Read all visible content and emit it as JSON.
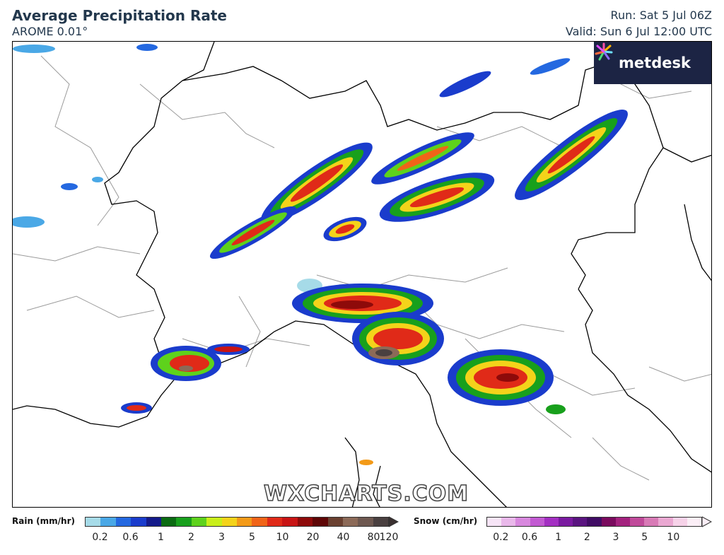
{
  "header": {
    "title": "Average Precipitation Rate",
    "model": "AROME 0.01°",
    "run": "Run: Sat 5 Jul 06Z",
    "valid": "Valid: Sun 6 Jul 12:00 UTC"
  },
  "logo": {
    "text": "metdesk"
  },
  "watermark": "WXCHARTS.COM",
  "legend": {
    "rain": {
      "title": "Rain (mm/hr)",
      "ticks": [
        "0.2",
        "0.6",
        "1",
        "2",
        "3",
        "5",
        "10",
        "20",
        "40",
        "80",
        "120"
      ],
      "colors": [
        "#a6dbe8",
        "#4aa8e6",
        "#2468e0",
        "#1a3ccc",
        "#141a8a",
        "#0b6b12",
        "#18a01c",
        "#5ed21c",
        "#c9ef1a",
        "#f4d31a",
        "#f39a18",
        "#f06418",
        "#e02a18",
        "#c81414",
        "#8e0a0a",
        "#5e0606",
        "#6a4030",
        "#8c6a58",
        "#6e5850",
        "#4a4040"
      ]
    },
    "snow": {
      "title": "Snow (cm/hr)",
      "ticks": [
        "0.2",
        "0.6",
        "1",
        "2",
        "3",
        "5",
        "10"
      ],
      "colors": [
        "#f6e4f6",
        "#e9b8ea",
        "#d888de",
        "#c25ad2",
        "#a32fc2",
        "#7a1aa0",
        "#5a1480",
        "#400c64",
        "#7a0a5e",
        "#a3227e",
        "#c04a9a",
        "#d87ab6",
        "#eaa8d2",
        "#f6d2e8",
        "#fbeef6"
      ]
    }
  }
}
